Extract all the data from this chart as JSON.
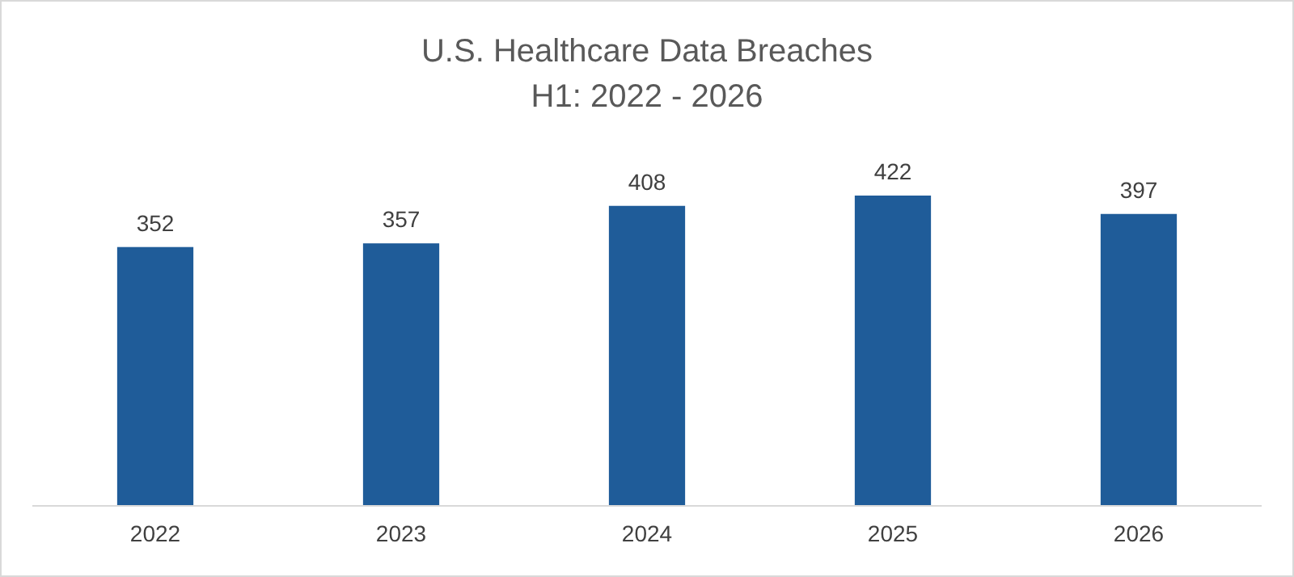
{
  "chart_data": {
    "type": "bar",
    "title": "U.S. Healthcare Data Breaches",
    "subtitle": "H1: 2022 - 2026",
    "categories": [
      "2022",
      "2023",
      "2024",
      "2025",
      "2026"
    ],
    "values": [
      352,
      357,
      408,
      422,
      397
    ],
    "color": "#1f5c99",
    "data_labels": true,
    "tick_labels": "x"
  }
}
